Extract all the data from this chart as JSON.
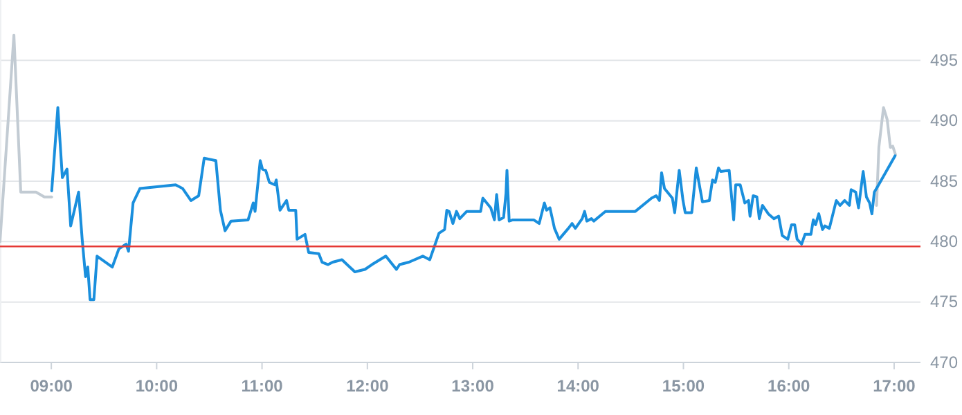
{
  "chart_data": {
    "type": "line",
    "xlim": [
      8.513,
      17.25
    ],
    "ylim": [
      470,
      500
    ],
    "xticks": [
      {
        "value": 9,
        "label": "09:00"
      },
      {
        "value": 10,
        "label": "10:00"
      },
      {
        "value": 11,
        "label": "11:00"
      },
      {
        "value": 12,
        "label": "12:00"
      },
      {
        "value": 13,
        "label": "13:00"
      },
      {
        "value": 14,
        "label": "14:00"
      },
      {
        "value": 15,
        "label": "15:00"
      },
      {
        "value": 16,
        "label": "16:00"
      },
      {
        "value": 17,
        "label": "17:00"
      }
    ],
    "yticks": [
      470,
      475,
      480,
      485,
      490,
      495
    ],
    "grid": "y",
    "marker": "none",
    "line_style": "solid",
    "ref_lines": [
      {
        "axis": "y",
        "value": 479.6,
        "color": "#e53935"
      }
    ],
    "series": [
      {
        "color": "#c2cbd3",
        "x": [
          8.513,
          8.645,
          8.71,
          8.855,
          8.934,
          9.004
        ],
        "values": [
          480,
          497.1,
          484.1,
          484.1,
          483.7,
          483.7
        ]
      },
      {
        "color": "#c2cbd3",
        "x": [
          16.833,
          16.855,
          16.899,
          16.934,
          16.964,
          16.987,
          17.013
        ],
        "values": [
          483.0,
          487.8,
          491.1,
          490.1,
          487.8,
          487.9,
          487.2
        ]
      },
      {
        "color": "#1a8fdd",
        "x": [
          9.004,
          9.062,
          9.105,
          9.149,
          9.184,
          9.259,
          9.293,
          9.325,
          9.346,
          9.368,
          9.404,
          9.434,
          9.579,
          9.641,
          9.71,
          9.733,
          9.776,
          9.842,
          10.18,
          10.246,
          10.325,
          10.399,
          10.451,
          10.562,
          10.605,
          10.649,
          10.706,
          10.868,
          10.917,
          10.934,
          10.983,
          11.004,
          11.035,
          11.07,
          11.122,
          11.135,
          11.171,
          11.233,
          11.254,
          11.32,
          11.333,
          11.408,
          11.443,
          11.539,
          11.57,
          11.627,
          11.671,
          11.759,
          11.881,
          11.977,
          12.043,
          12.175,
          12.276,
          12.306,
          12.395,
          12.526,
          12.592,
          12.68,
          12.733,
          12.754,
          12.776,
          12.812,
          12.846,
          12.877,
          12.943,
          13.075,
          13.096,
          13.171,
          13.206,
          13.227,
          13.25,
          13.293,
          13.316,
          13.325,
          13.346,
          13.381,
          13.579,
          13.631,
          13.68,
          13.701,
          13.733,
          13.776,
          13.82,
          13.908,
          13.943,
          13.974,
          14.039,
          14.062,
          14.083,
          14.127,
          14.149,
          14.259,
          14.543,
          14.697,
          14.741,
          14.772,
          14.793,
          14.82,
          14.895,
          14.917,
          14.96,
          14.996,
          15.017,
          15.079,
          15.122,
          15.18,
          15.246,
          15.276,
          15.302,
          15.333,
          15.355,
          15.434,
          15.477,
          15.496,
          15.539,
          15.583,
          15.618,
          15.632,
          15.662,
          15.697,
          15.72,
          15.75,
          15.806,
          15.859,
          15.904,
          15.938,
          15.991,
          16.026,
          16.056,
          16.079,
          16.122,
          16.154,
          16.21,
          16.233,
          16.254,
          16.285,
          16.32,
          16.342,
          16.385,
          16.451,
          16.487,
          16.53,
          16.575,
          16.592,
          16.635,
          16.662,
          16.706,
          16.737,
          16.767,
          16.789,
          16.812,
          16.846,
          17.009
        ],
        "values": [
          484.2,
          491.1,
          485.3,
          486.0,
          481.3,
          484.1,
          480.2,
          477.1,
          477.9,
          475.2,
          475.2,
          478.8,
          477.9,
          479.4,
          479.8,
          479.2,
          483.2,
          484.4,
          484.7,
          484.4,
          483.4,
          483.8,
          486.9,
          486.7,
          482.6,
          480.9,
          481.7,
          481.8,
          483.2,
          482.5,
          486.7,
          486.0,
          485.9,
          484.9,
          484.7,
          485.1,
          482.6,
          483.4,
          482.6,
          482.6,
          480.2,
          480.6,
          479.1,
          479.0,
          478.3,
          478.1,
          478.3,
          478.5,
          477.5,
          477.7,
          478.1,
          478.8,
          477.7,
          478.1,
          478.3,
          478.8,
          478.5,
          480.7,
          481.0,
          482.6,
          482.5,
          481.5,
          482.5,
          481.9,
          482.5,
          482.5,
          483.6,
          482.8,
          481.8,
          483.9,
          481.8,
          482.0,
          484.0,
          485.9,
          481.7,
          481.8,
          481.8,
          481.5,
          483.2,
          482.6,
          482.8,
          481.1,
          480.2,
          481.1,
          481.5,
          481.1,
          481.9,
          482.5,
          481.7,
          481.9,
          481.7,
          482.5,
          482.5,
          483.6,
          483.8,
          483.4,
          485.7,
          484.4,
          483.6,
          482.4,
          485.9,
          483.4,
          482.4,
          482.4,
          486.1,
          483.3,
          483.4,
          485.1,
          484.9,
          486.1,
          485.8,
          485.9,
          481.8,
          484.7,
          484.7,
          483.2,
          483.4,
          482.1,
          483.8,
          483.7,
          481.9,
          483.0,
          482.3,
          481.9,
          482.1,
          480.5,
          480.2,
          481.4,
          481.4,
          480.2,
          479.8,
          480.6,
          480.6,
          481.8,
          481.4,
          482.3,
          481.0,
          481.3,
          481.1,
          483.4,
          483.0,
          483.4,
          483.0,
          484.3,
          484.1,
          482.8,
          485.8,
          483.7,
          483.2,
          482.3,
          484.1,
          484.6,
          487.1
        ]
      }
    ]
  }
}
